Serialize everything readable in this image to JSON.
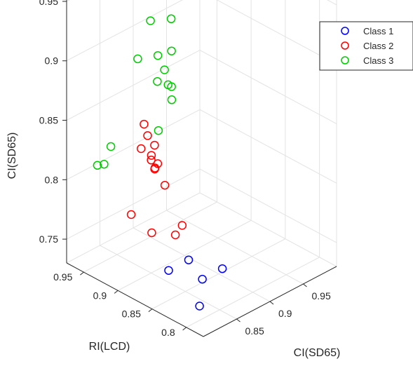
{
  "chart_data": {
    "type": "scatter3d",
    "title": "",
    "axes": {
      "x": {
        "label": "CI(SD65)",
        "lim": [
          0.8,
          1.0
        ],
        "ticks": [
          "0.85",
          "0.9",
          "0.95"
        ]
      },
      "y": {
        "label": "RI(LCD)",
        "lim": [
          0.775,
          0.975
        ],
        "ticks": [
          "0.8",
          "0.85",
          "0.9",
          "0.95"
        ]
      },
      "z": {
        "label": "CI(SD65)",
        "lim": [
          0.73,
          0.96
        ],
        "ticks": [
          "0.75",
          "0.8",
          "0.85",
          "0.9",
          "0.95"
        ]
      }
    },
    "grid": true,
    "legend_position": "top-right",
    "series": [
      {
        "name": "Class 1",
        "color": "#0000ff",
        "points": [
          [
            0.83,
            0.855,
            0.752
          ],
          [
            0.86,
            0.855,
            0.752
          ],
          [
            0.855,
            0.83,
            0.745
          ],
          [
            0.885,
            0.83,
            0.745
          ],
          [
            0.82,
            0.8,
            0.742
          ]
        ]
      },
      {
        "name": "Class 2",
        "color": "#ff0000",
        "points": [
          [
            0.84,
            0.905,
            0.836
          ],
          [
            0.86,
            0.915,
            0.838
          ],
          [
            0.83,
            0.875,
            0.832
          ],
          [
            0.84,
            0.89,
            0.835
          ],
          [
            0.87,
            0.93,
            0.84
          ],
          [
            0.855,
            0.9,
            0.836
          ],
          [
            0.85,
            0.9,
            0.825
          ],
          [
            0.845,
            0.89,
            0.822
          ],
          [
            0.85,
            0.88,
            0.81
          ],
          [
            0.87,
            0.91,
            0.813
          ],
          [
            0.835,
            0.85,
            0.782
          ],
          [
            0.84,
            0.845,
            0.79
          ],
          [
            0.82,
            0.87,
            0.782
          ],
          [
            0.82,
            0.9,
            0.788
          ]
        ]
      },
      {
        "name": "Class 3",
        "color": "#00cc00",
        "points": [
          [
            0.95,
            0.95,
            0.99
          ],
          [
            0.88,
            0.9,
            0.935
          ],
          [
            0.89,
            0.94,
            0.918
          ],
          [
            0.86,
            0.88,
            0.92
          ],
          [
            0.84,
            0.91,
            0.91
          ],
          [
            0.86,
            0.9,
            0.91
          ],
          [
            0.87,
            0.9,
            0.895
          ],
          [
            0.86,
            0.88,
            0.89
          ],
          [
            0.85,
            0.87,
            0.885
          ],
          [
            0.86,
            0.885,
            0.89
          ],
          [
            0.83,
            0.87,
            0.865
          ],
          [
            0.89,
            0.93,
            0.87
          ],
          [
            0.81,
            0.92,
            0.842
          ],
          [
            0.8,
            0.93,
            0.826
          ],
          [
            0.81,
            0.93,
            0.824
          ]
        ]
      }
    ]
  }
}
